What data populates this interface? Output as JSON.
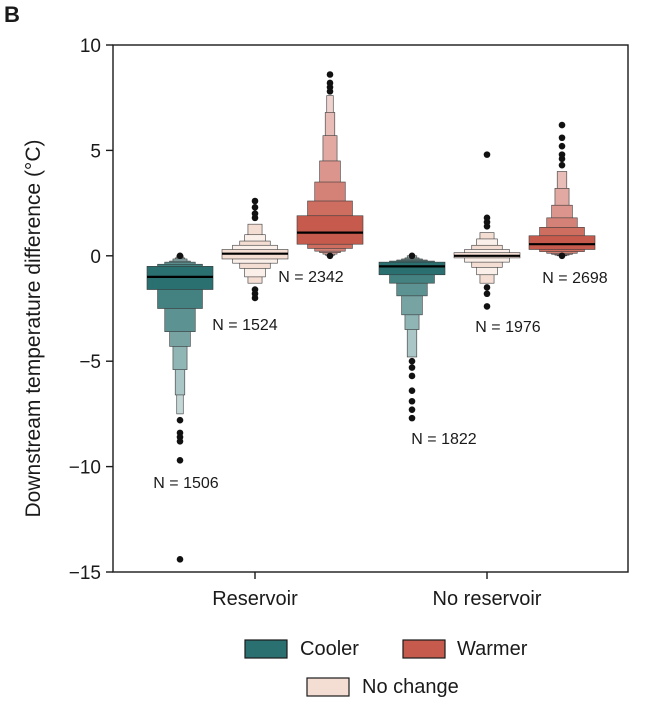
{
  "panel_label": "B",
  "chart_data": {
    "type": "boxen",
    "ylabel": "Downstream  temperature difference (°C)",
    "xlabel": "",
    "ylim": [
      -15,
      10
    ],
    "yticks": [
      10,
      5,
      0,
      -5,
      -10,
      -15
    ],
    "ytick_labels": [
      "10",
      "5",
      "0",
      "−5",
      "−10",
      "−15"
    ],
    "categories": [
      "Reservoir",
      "No reservoir"
    ],
    "legend": {
      "placement": "bottom-center",
      "entries": [
        {
          "label": "Cooler",
          "color": "#2a7070"
        },
        {
          "label": "Warmer",
          "color": "#c65a4c"
        },
        {
          "label": "No change",
          "color": "#f4ddd3"
        }
      ]
    },
    "series": [
      {
        "name": "Cooler",
        "color": "#2a7070",
        "groups": [
          {
            "category": "Reservoir",
            "n_label": "N = 1506",
            "median": -1.0,
            "boxes": [
              [
                -1.6,
                -0.5
              ],
              [
                -2.5,
                -0.4
              ],
              [
                -3.6,
                -0.3
              ],
              [
                -4.3,
                -0.25
              ],
              [
                -5.4,
                -0.15
              ],
              [
                -6.6,
                -0.1
              ],
              [
                -7.5,
                0.0
              ]
            ],
            "outliers": [
              -7.8,
              -8.4,
              -8.6,
              -8.8,
              -9.7,
              -14.4,
              0.0
            ]
          },
          {
            "category": "No reservoir",
            "n_label": "N = 1822",
            "median": -0.5,
            "boxes": [
              [
                -0.9,
                -0.3
              ],
              [
                -1.3,
                -0.25
              ],
              [
                -1.9,
                -0.2
              ],
              [
                -2.8,
                -0.15
              ],
              [
                -3.5,
                -0.1
              ],
              [
                -4.8,
                0.0
              ]
            ],
            "outliers": [
              -5.0,
              -5.3,
              -5.7,
              -6.4,
              -6.9,
              -7.3,
              -7.7,
              0.0
            ]
          }
        ]
      },
      {
        "name": "No change",
        "color": "#f4ddd3",
        "groups": [
          {
            "category": "Reservoir",
            "n_label": "N = 1524",
            "median": 0.1,
            "boxes": [
              [
                -0.15,
                0.3
              ],
              [
                -0.35,
                0.5
              ],
              [
                -0.6,
                0.7
              ],
              [
                -1.0,
                1.0
              ],
              [
                -1.3,
                1.5
              ]
            ],
            "outliers": [
              -1.6,
              -1.8,
              -2.0,
              1.8,
              2.0,
              2.3,
              2.6
            ]
          },
          {
            "category": "No reservoir",
            "n_label": "N = 1976",
            "median": 0.0,
            "boxes": [
              [
                -0.1,
                0.15
              ],
              [
                -0.3,
                0.3
              ],
              [
                -0.55,
                0.5
              ],
              [
                -0.9,
                0.8
              ],
              [
                -1.3,
                1.1
              ]
            ],
            "outliers": [
              -1.5,
              -1.8,
              -2.4,
              1.4,
              1.6,
              1.8,
              4.8
            ]
          }
        ]
      },
      {
        "name": "Warmer",
        "color": "#c65a4c",
        "groups": [
          {
            "category": "Reservoir",
            "n_label": "N = 2342",
            "median": 1.1,
            "boxes": [
              [
                0.55,
                1.9
              ],
              [
                0.35,
                2.6
              ],
              [
                0.22,
                3.5
              ],
              [
                0.15,
                4.5
              ],
              [
                0.08,
                5.7
              ],
              [
                0.03,
                6.8
              ],
              [
                0.0,
                7.6
              ]
            ],
            "outliers": [
              7.8,
              8.0,
              8.2,
              8.6,
              0.0
            ]
          },
          {
            "category": "No reservoir",
            "n_label": "N = 2698",
            "median": 0.55,
            "boxes": [
              [
                0.3,
                0.95
              ],
              [
                0.2,
                1.35
              ],
              [
                0.12,
                1.8
              ],
              [
                0.07,
                2.4
              ],
              [
                0.03,
                3.2
              ],
              [
                0.0,
                4.0
              ]
            ],
            "outliers": [
              4.3,
              4.6,
              4.8,
              5.2,
              5.6,
              6.2,
              0.0
            ]
          }
        ]
      }
    ]
  }
}
